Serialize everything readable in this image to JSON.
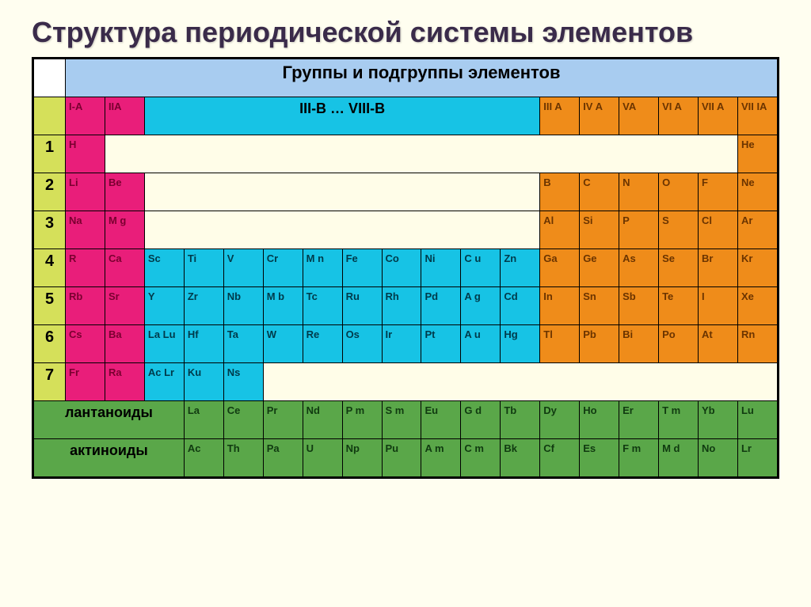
{
  "title": "Структура периодической системы элементов",
  "header": "Группы и подгруппы элементов",
  "cols": {
    "IA": "I-A",
    "IIA": "IIА",
    "mid": "III-B … VIII-B",
    "IIIA": "III A",
    "IVA": "IV A",
    "VA": "VA",
    "VIA": "VI A",
    "VIIA": "VII A",
    "VIIIA": "VII IA"
  },
  "periods": [
    "1",
    "2",
    "3",
    "4",
    "5",
    "6",
    "7"
  ],
  "p1": {
    "H": "H",
    "He": "He"
  },
  "p2": {
    "Li": "Li",
    "Be": "Be",
    "B": "B",
    "C": "C",
    "N": "N",
    "O": "O",
    "F": "F",
    "Ne": "Ne"
  },
  "p3": {
    "Na": "Na",
    "Mg": "M g",
    "Al": "Al",
    "Si": "Si",
    "P": "P",
    "S": "S",
    "Cl": "Cl",
    "Ar": "Ar"
  },
  "p4": {
    "R": "R",
    "Ca": "Ca",
    "Sc": "Sc",
    "Ti": "Ti",
    "V": "V",
    "Cr": "Cr",
    "Mn": "M n",
    "Fe": "Fe",
    "Co": "Co",
    "Ni": "Ni",
    "Cu": "C u",
    "Zn": "Zn",
    "Ga": "Ga",
    "Ge": "Ge",
    "As": "As",
    "Se": "Se",
    "Br": "Br",
    "Kr": "Kr"
  },
  "p5": {
    "Rb": "Rb",
    "Sr": "Sr",
    "Y": "Y",
    "Zr": "Zr",
    "Nb": "Nb",
    "Mb": "M b",
    "Tc": "Tc",
    "Ru": "Ru",
    "Rh": "Rh",
    "Pd": "Pd",
    "Ag": "A g",
    "Cd": "Cd",
    "In": "In",
    "Sn": "Sn",
    "Sb": "Sb",
    "Te": "Te",
    "I": "I",
    "Xe": "Xe"
  },
  "p6": {
    "Cs": "Cs",
    "Ba": "Ba",
    "LaLu": "La Lu",
    "Hf": "Hf",
    "Ta": "Ta",
    "W": "W",
    "Re": "Re",
    "Os": "Os",
    "Ir": "Ir",
    "Pt": "Pt",
    "Au": "A u",
    "Hg": "Hg",
    "Tl": "Tl",
    "Pb": "Pb",
    "Bi": "Bi",
    "Po": "Po",
    "At": "At",
    "Rn": "Rn"
  },
  "p7": {
    "Fr": "Fr",
    "Ra": "Ra",
    "AcLr": "Ac Lr",
    "Ku": "Ku",
    "Ns": "Ns"
  },
  "lan": {
    "label": "лантаноиды",
    "La": "La",
    "Ce": "Ce",
    "Pr": "Pr",
    "Nd": "Nd",
    "Pm": "P m",
    "Sm": "S m",
    "Eu": "Eu",
    "Gd": "G d",
    "Tb": "Tb",
    "Dy": "Dy",
    "Ho": "Ho",
    "Er": "Er",
    "Tm": "T m",
    "Yb": "Yb",
    "Lu": "Lu"
  },
  "act": {
    "label": "актиноиды",
    "Ac": "Ac",
    "Th": "Th",
    "Pa": "Pa",
    "U": "U",
    "Np": "Np",
    "Pu": "Pu",
    "Am": "A m",
    "Cm": "C m",
    "Bk": "Bk",
    "Cf": "Cf",
    "Es": "Es",
    "Fm": "F m",
    "Md": "M d",
    "No": "No",
    "Lr": "Lr"
  },
  "colors": {
    "magenta": "#e91e7a",
    "cyan": "#17c3e5",
    "orange": "#ef8c1a",
    "green": "#5aa749",
    "period": "#d5e05a",
    "header": "#a8ccf0",
    "cream": "#fffde8"
  }
}
